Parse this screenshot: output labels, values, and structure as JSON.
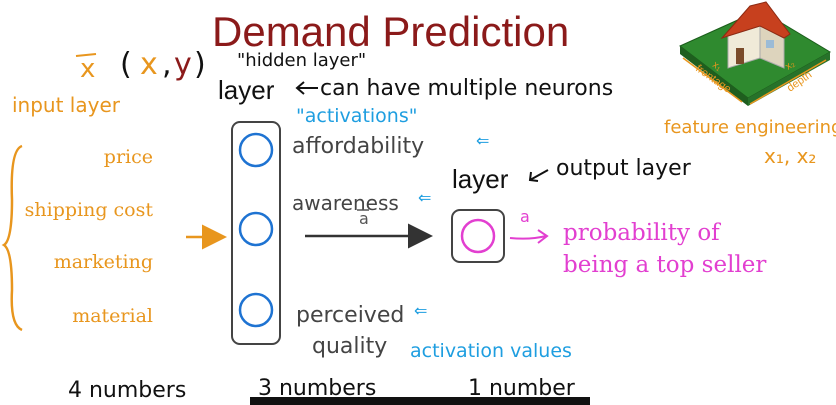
{
  "title": "Demand Prediction",
  "colors": {
    "title": "#8b1a1a",
    "orange": "#e8961e",
    "blue": "#1e73d2",
    "magenta": "#e23fd0",
    "ink": "#111111",
    "gray": "#555555"
  },
  "notation": {
    "x_vec": "x",
    "open_paren": "(",
    "x": "x",
    "comma": ",",
    "y": "y",
    "close_paren": ")"
  },
  "input_layer": {
    "label": "input layer",
    "features": [
      "price",
      "shipping cost",
      "marketing",
      "material"
    ],
    "count_label": "4 numbers"
  },
  "hidden_layer": {
    "quote_label": "\"hidden layer\"",
    "layer_word": "layer",
    "note": "can have multiple neurons",
    "activations_label": "\"activations\"",
    "neurons": [
      "affordability",
      "awareness",
      "perceived quality"
    ],
    "activation_values_label": "activation values",
    "count_label": "3 numbers"
  },
  "vector_label": "a",
  "output_layer": {
    "layer_word": "layer",
    "note": "output layer",
    "output_label": "a",
    "result": "probability of being a top seller",
    "count_label": "1 number"
  },
  "feature_engineering": {
    "label": "feature engineering",
    "vars": "x₁, x₂",
    "house": {
      "frontage": "frontage",
      "depth": "depth",
      "x1": "x₁",
      "x2": "x₂"
    }
  }
}
